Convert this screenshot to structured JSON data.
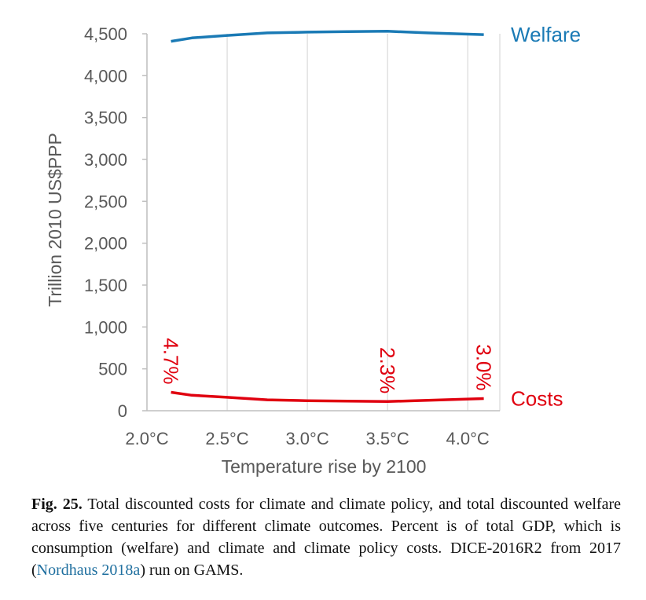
{
  "chart_data": {
    "type": "line",
    "title": "",
    "xlabel": "Temperature rise by 2100",
    "ylabel": "Trillion 2010 US$PPP",
    "x_ticks": [
      "2.0°C",
      "2.5°C",
      "3.0°C",
      "3.5°C",
      "4.0°C"
    ],
    "y_ticks": [
      "0",
      "500",
      "1,000",
      "1,500",
      "2,000",
      "2,500",
      "3,000",
      "3,500",
      "4,000",
      "4,500"
    ],
    "xlim": [
      2.0,
      4.2
    ],
    "ylim": [
      0,
      4500
    ],
    "grid": "vertical",
    "series": [
      {
        "name": "Welfare",
        "color": "#1a7ab5",
        "x": [
          2.15,
          2.28,
          2.5,
          2.75,
          3.0,
          3.25,
          3.5,
          3.75,
          4.1
        ],
        "values": [
          4410,
          4450,
          4480,
          4510,
          4520,
          4525,
          4530,
          4510,
          4490
        ]
      },
      {
        "name": "Costs",
        "color": "#e0000f",
        "x": [
          2.15,
          2.28,
          2.5,
          2.75,
          3.0,
          3.25,
          3.5,
          3.75,
          4.1
        ],
        "values": [
          220,
          185,
          160,
          130,
          120,
          115,
          110,
          125,
          145
        ]
      }
    ],
    "annotations": [
      {
        "text": "4.7%",
        "x": 2.15,
        "y": 220
      },
      {
        "text": "2.3%",
        "x": 3.5,
        "y": 110
      },
      {
        "text": "3.0%",
        "x": 4.1,
        "y": 145
      }
    ]
  },
  "caption": {
    "fig_label": "Fig. 25.",
    "text_before_ref": " Total discounted costs for climate and climate policy, and total discounted welfare across five centuries for different climate outcomes. Percent is of total GDP, which is consumption (welfare) and climate and climate policy costs. DICE-2016R2 from 2017 (",
    "ref": "Nordhaus 2018a",
    "text_after_ref": ") run on GAMS."
  }
}
